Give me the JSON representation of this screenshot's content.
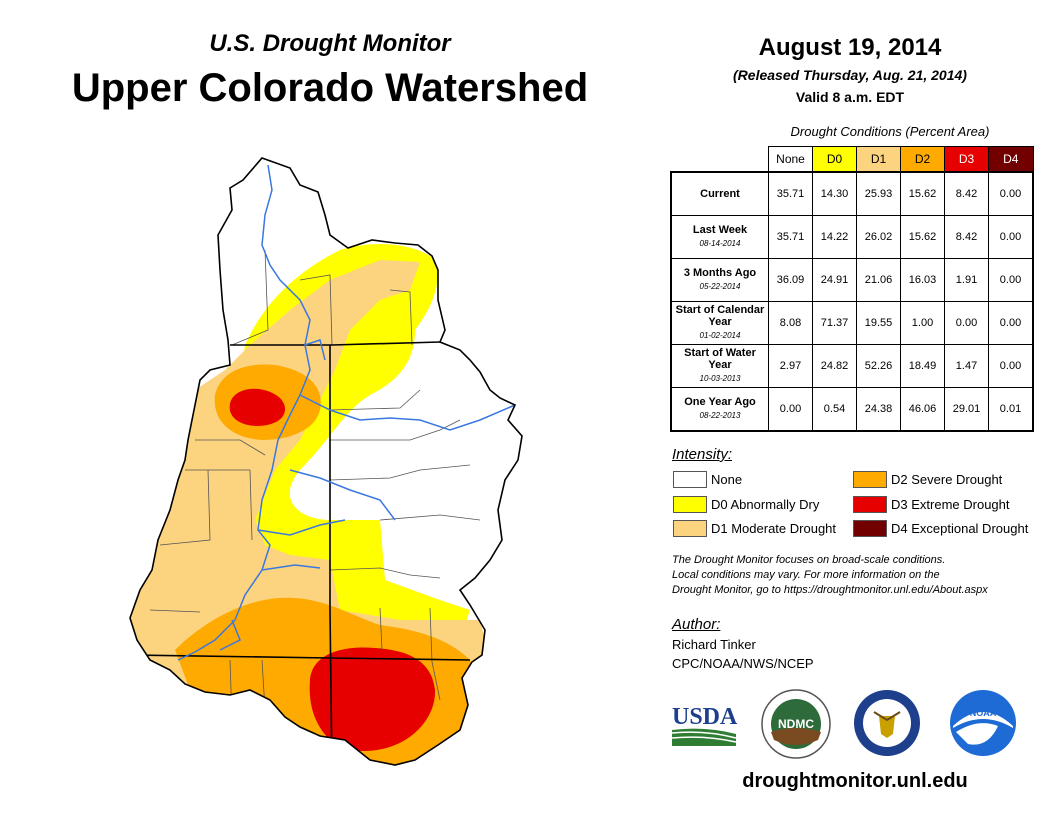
{
  "header": {
    "subtitle": "U.S. Drought Monitor",
    "title": "Upper Colorado Watershed",
    "date": "August 19, 2014",
    "released": "(Released Thursday, Aug. 21, 2014)",
    "valid": "Valid 8 a.m. EDT"
  },
  "colors": {
    "none": "#ffffff",
    "d0": "#ffff00",
    "d1": "#fcd37f",
    "d2": "#ffaa00",
    "d3": "#e60000",
    "d4": "#730000",
    "river": "#3a78e0"
  },
  "table": {
    "caption": "Drought Conditions (Percent Area)",
    "columns": [
      "None",
      "D0",
      "D1",
      "D2",
      "D3",
      "D4"
    ],
    "rows": [
      {
        "label": "Current",
        "date": "",
        "values": [
          "35.71",
          "14.30",
          "25.93",
          "15.62",
          "8.42",
          "0.00"
        ]
      },
      {
        "label": "Last Week",
        "date": "08-14-2014",
        "values": [
          "35.71",
          "14.22",
          "26.02",
          "15.62",
          "8.42",
          "0.00"
        ]
      },
      {
        "label": "3 Months Ago",
        "date": "05-22-2014",
        "values": [
          "36.09",
          "24.91",
          "21.06",
          "16.03",
          "1.91",
          "0.00"
        ]
      },
      {
        "label": "Start of Calendar Year",
        "date": "01-02-2014",
        "values": [
          "8.08",
          "71.37",
          "19.55",
          "1.00",
          "0.00",
          "0.00"
        ]
      },
      {
        "label": "Start of Water Year",
        "date": "10-03-2013",
        "values": [
          "2.97",
          "24.82",
          "52.26",
          "18.49",
          "1.47",
          "0.00"
        ]
      },
      {
        "label": "One Year Ago",
        "date": "08-22-2013",
        "values": [
          "0.00",
          "0.54",
          "24.38",
          "46.06",
          "29.01",
          "0.01"
        ]
      }
    ]
  },
  "legend": {
    "title": "Intensity:",
    "items": [
      {
        "label": "None"
      },
      {
        "label": "D0 Abnormally Dry"
      },
      {
        "label": "D1 Moderate Drought"
      },
      {
        "label": "D2 Severe Drought"
      },
      {
        "label": "D3 Extreme Drought"
      },
      {
        "label": "D4 Exceptional Drought"
      }
    ]
  },
  "note": {
    "line1": "The Drought Monitor focuses on broad-scale conditions.",
    "line2": "Local conditions may vary. For more information on the",
    "line3": "Drought Monitor, go to https://droughtmonitor.unl.edu/About.aspx"
  },
  "author": {
    "title": "Author:",
    "name": "Richard Tinker",
    "org": "CPC/NOAA/NWS/NCEP"
  },
  "logos": {
    "usda": "USDA",
    "ndmc": "NDMC",
    "noaa": "NOAA"
  },
  "website": "droughtmonitor.unl.edu"
}
